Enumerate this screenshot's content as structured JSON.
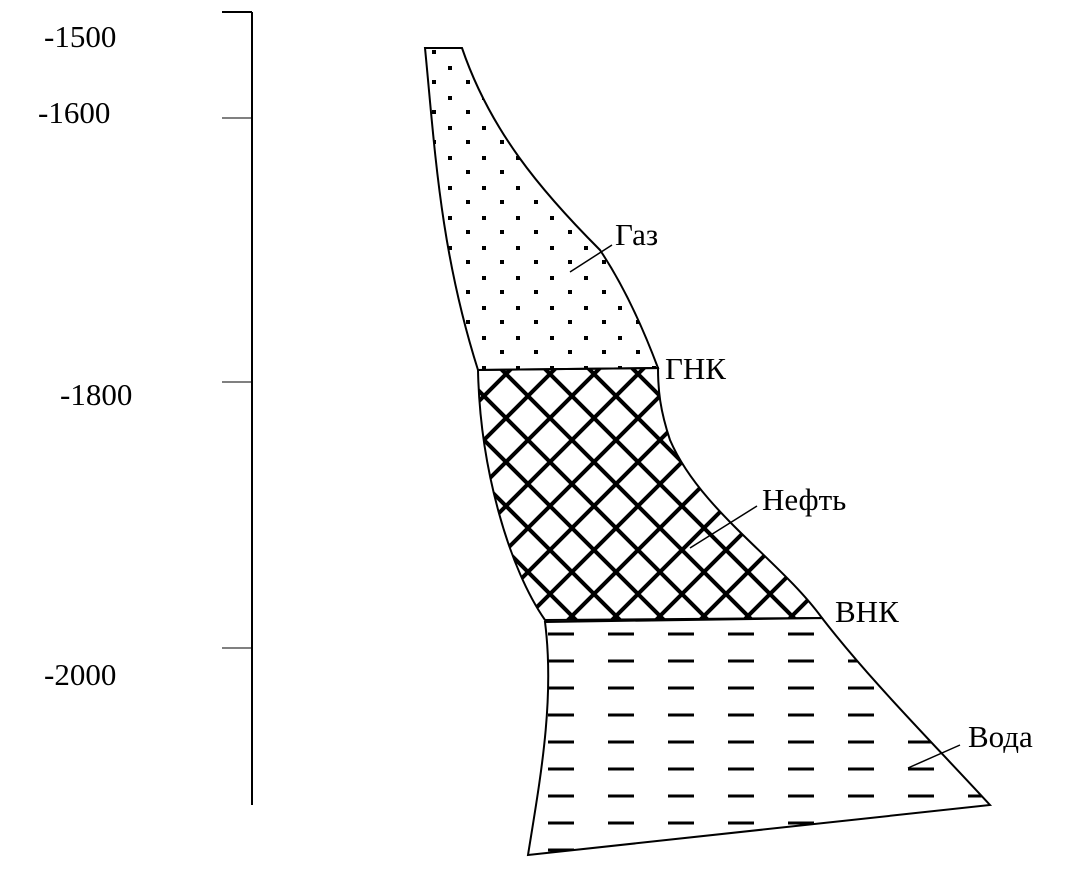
{
  "depth_scale": [
    "-1500",
    "-1600",
    "-1800",
    "-2000"
  ],
  "zones": {
    "gas": "Газ",
    "gas_oil_contact": "ГНК",
    "oil": "Нефть",
    "oil_water_contact": "ВНК",
    "water": "Вода"
  }
}
